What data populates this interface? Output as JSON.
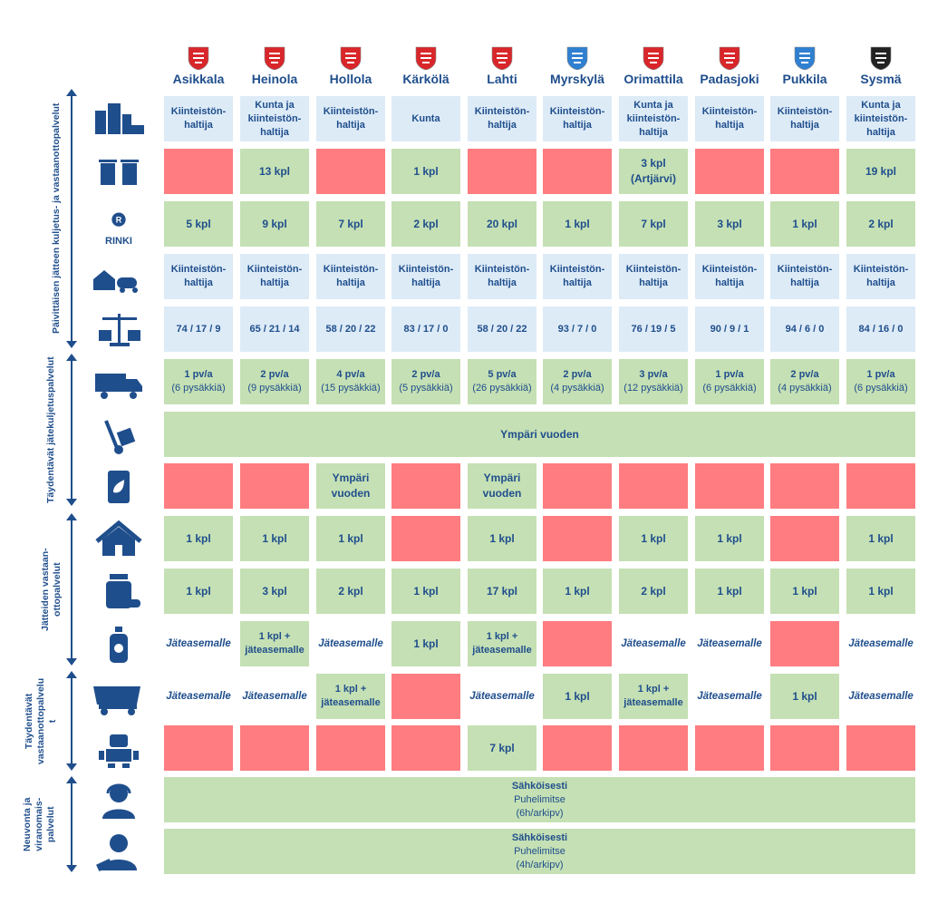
{
  "municipalities": [
    "Asikkala",
    "Heinola",
    "Hollola",
    "Kärkölä",
    "Lahti",
    "Myrskylä",
    "Orimattila",
    "Padasjoki",
    "Pukkila",
    "Sysmä"
  ],
  "crest_colors": [
    "#d9262a",
    "#d9262a",
    "#d9262a",
    "#d9262a",
    "#d9262a",
    "#2f80d1",
    "#d9262a",
    "#d9262a",
    "#2f80d1",
    "#222222"
  ],
  "groups": [
    {
      "label": "Päivittäisen jätteen kuljetus- ja vastaanottopalvelut"
    },
    {
      "label": "Täydentävät jätekuljetuspalvelut"
    },
    {
      "label": "Jätteiden vastaan-\nottopalvelut"
    },
    {
      "label": "Täydentävät\nvastaanottopalvelu\nt"
    },
    {
      "label": "Neuvonta ja\nviranomais-\npalvelut"
    }
  ],
  "icons": [
    "buildings-truck-icon",
    "waste-bins-icon",
    "rinki-logo-icon",
    "house-tanker-icon",
    "scales-icon",
    "truck-icon",
    "hand-truck-icon",
    "compost-bag-icon",
    "house-icon",
    "medicine-bottle-icon",
    "hazardous-spray-icon",
    "dump-truck-icon",
    "robot-icon",
    "headset-person-icon",
    "official-person-icon"
  ],
  "rinki_label": "RINKI",
  "rows": [
    {
      "cells": [
        {
          "t": "Kiinteistön-\nhaltija",
          "c": "blue"
        },
        {
          "t": "Kunta ja\nkiinteistön-\nhaltija",
          "c": "blue"
        },
        {
          "t": "Kiinteistön-\nhaltija",
          "c": "blue"
        },
        {
          "t": "Kunta",
          "c": "blue"
        },
        {
          "t": "Kiinteistön-\nhaltija",
          "c": "blue"
        },
        {
          "t": "Kiinteistön-\nhaltija",
          "c": "blue"
        },
        {
          "t": "Kunta ja\nkiinteistön-\nhaltija",
          "c": "blue"
        },
        {
          "t": "Kiinteistön-\nhaltija",
          "c": "blue"
        },
        {
          "t": "Kiinteistön-\nhaltija",
          "c": "blue"
        },
        {
          "t": "Kunta ja\nkiinteistön-\nhaltija",
          "c": "blue"
        }
      ]
    },
    {
      "cells": [
        {
          "t": "",
          "c": "red"
        },
        {
          "t": "13 kpl",
          "c": "green",
          "b": 1
        },
        {
          "t": "",
          "c": "red"
        },
        {
          "t": "1 kpl",
          "c": "green",
          "b": 1
        },
        {
          "t": "",
          "c": "red"
        },
        {
          "t": "",
          "c": "red"
        },
        {
          "t": "3 kpl\n(Artjärvi)",
          "c": "green",
          "b": 1
        },
        {
          "t": "",
          "c": "red"
        },
        {
          "t": "",
          "c": "red"
        },
        {
          "t": "19 kpl",
          "c": "green",
          "b": 1
        }
      ]
    },
    {
      "cells": [
        {
          "t": "5 kpl",
          "c": "green",
          "b": 1
        },
        {
          "t": "9 kpl",
          "c": "green",
          "b": 1
        },
        {
          "t": "7 kpl",
          "c": "green",
          "b": 1
        },
        {
          "t": "2 kpl",
          "c": "green",
          "b": 1
        },
        {
          "t": "20 kpl",
          "c": "green",
          "b": 1
        },
        {
          "t": "1 kpl",
          "c": "green",
          "b": 1
        },
        {
          "t": "7 kpl",
          "c": "green",
          "b": 1
        },
        {
          "t": "3 kpl",
          "c": "green",
          "b": 1
        },
        {
          "t": "1 kpl",
          "c": "green",
          "b": 1
        },
        {
          "t": "2 kpl",
          "c": "green",
          "b": 1
        }
      ]
    },
    {
      "cells": [
        {
          "t": "Kiinteistön-\nhaltija",
          "c": "blue"
        },
        {
          "t": "Kiinteistön-\nhaltija",
          "c": "blue"
        },
        {
          "t": "Kiinteistön-\nhaltija",
          "c": "blue"
        },
        {
          "t": "Kiinteistön-\nhaltija",
          "c": "blue"
        },
        {
          "t": "Kiinteistön-\nhaltija",
          "c": "blue"
        },
        {
          "t": "Kiinteistön-\nhaltija",
          "c": "blue"
        },
        {
          "t": "Kiinteistön-\nhaltija",
          "c": "blue"
        },
        {
          "t": "Kiinteistön-\nhaltija",
          "c": "blue"
        },
        {
          "t": "Kiinteistön-\nhaltija",
          "c": "blue"
        },
        {
          "t": "Kiinteistön-\nhaltija",
          "c": "blue"
        }
      ]
    },
    {
      "cells": [
        {
          "t": "74 / 17 / 9",
          "c": "blue"
        },
        {
          "t": "65 / 21 / 14",
          "c": "blue"
        },
        {
          "t": "58 / 20 / 22",
          "c": "blue"
        },
        {
          "t": "83 / 17 / 0",
          "c": "blue"
        },
        {
          "t": "58 / 20 / 22",
          "c": "blue"
        },
        {
          "t": "93 / 7 / 0",
          "c": "blue"
        },
        {
          "t": "76 / 19 / 5",
          "c": "blue"
        },
        {
          "t": "90 / 9 / 1",
          "c": "blue"
        },
        {
          "t": "94 / 6 / 0",
          "c": "blue"
        },
        {
          "t": "84 / 16 / 0",
          "c": "blue"
        }
      ]
    },
    {
      "cells": [
        {
          "t": "1 pv/a",
          "s": "(6 pysäkkiä)",
          "c": "green"
        },
        {
          "t": "2 pv/a",
          "s": "(9 pysäkkiä)",
          "c": "green"
        },
        {
          "t": "4 pv/a",
          "s": "(15 pysäkkiä)",
          "c": "green"
        },
        {
          "t": "2 pv/a",
          "s": "(5 pysäkkiä)",
          "c": "green"
        },
        {
          "t": "5 pv/a",
          "s": "(26 pysäkkiä)",
          "c": "green"
        },
        {
          "t": "2 pv/a",
          "s": "(4 pysäkkiä)",
          "c": "green"
        },
        {
          "t": "3 pv/a",
          "s": "(12 pysäkkiä)",
          "c": "green"
        },
        {
          "t": "1 pv/a",
          "s": "(6 pysäkkiä)",
          "c": "green"
        },
        {
          "t": "2 pv/a",
          "s": "(4 pysäkkiä)",
          "c": "green"
        },
        {
          "t": "1 pv/a",
          "s": "(6 pysäkkiä)",
          "c": "green"
        }
      ]
    },
    {
      "span": {
        "t": "Ympäri vuoden",
        "c": "green"
      }
    },
    {
      "cells": [
        {
          "t": "",
          "c": "red"
        },
        {
          "t": "",
          "c": "red"
        },
        {
          "t": "Ympäri\nvuoden",
          "c": "green",
          "b": 1
        },
        {
          "t": "",
          "c": "red"
        },
        {
          "t": "Ympäri\nvuoden",
          "c": "green",
          "b": 1
        },
        {
          "t": "",
          "c": "red"
        },
        {
          "t": "",
          "c": "red"
        },
        {
          "t": "",
          "c": "red"
        },
        {
          "t": "",
          "c": "red"
        },
        {
          "t": "",
          "c": "red"
        }
      ]
    },
    {
      "cells": [
        {
          "t": "1 kpl",
          "c": "green",
          "b": 1
        },
        {
          "t": "1 kpl",
          "c": "green",
          "b": 1
        },
        {
          "t": "1 kpl",
          "c": "green",
          "b": 1
        },
        {
          "t": "",
          "c": "red"
        },
        {
          "t": "1 kpl",
          "c": "green",
          "b": 1
        },
        {
          "t": "",
          "c": "red"
        },
        {
          "t": "1 kpl",
          "c": "green",
          "b": 1
        },
        {
          "t": "1 kpl",
          "c": "green",
          "b": 1
        },
        {
          "t": "",
          "c": "red"
        },
        {
          "t": "1 kpl",
          "c": "green",
          "b": 1
        }
      ]
    },
    {
      "cells": [
        {
          "t": "1 kpl",
          "c": "green",
          "b": 1
        },
        {
          "t": "3 kpl",
          "c": "green",
          "b": 1
        },
        {
          "t": "2 kpl",
          "c": "green",
          "b": 1
        },
        {
          "t": "1 kpl",
          "c": "green",
          "b": 1
        },
        {
          "t": "17 kpl",
          "c": "green",
          "b": 1
        },
        {
          "t": "1 kpl",
          "c": "green",
          "b": 1
        },
        {
          "t": "2 kpl",
          "c": "green",
          "b": 1
        },
        {
          "t": "1 kpl",
          "c": "green",
          "b": 1
        },
        {
          "t": "1 kpl",
          "c": "green",
          "b": 1
        },
        {
          "t": "1 kpl",
          "c": "green",
          "b": 1
        }
      ]
    },
    {
      "cells": [
        {
          "t": "Jäteasemalle",
          "c": "white",
          "i": 1
        },
        {
          "t": "1 kpl +\njäteasemalle",
          "c": "green"
        },
        {
          "t": "Jäteasemalle",
          "c": "white",
          "i": 1
        },
        {
          "t": "1 kpl",
          "c": "green",
          "b": 1
        },
        {
          "t": "1 kpl +\njäteasemalle",
          "c": "green"
        },
        {
          "t": "",
          "c": "red"
        },
        {
          "t": "Jäteasemalle",
          "c": "white",
          "i": 1
        },
        {
          "t": "Jäteasemalle",
          "c": "white",
          "i": 1
        },
        {
          "t": "",
          "c": "red"
        },
        {
          "t": "Jäteasemalle",
          "c": "white",
          "i": 1
        }
      ]
    },
    {
      "cells": [
        {
          "t": "Jäteasemalle",
          "c": "white",
          "i": 1
        },
        {
          "t": "Jäteasemalle",
          "c": "white",
          "i": 1
        },
        {
          "t": "1 kpl +\njäteasemalle",
          "c": "green"
        },
        {
          "t": "",
          "c": "red"
        },
        {
          "t": "Jäteasemalle",
          "c": "white",
          "i": 1
        },
        {
          "t": "1 kpl",
          "c": "green",
          "b": 1
        },
        {
          "t": "1 kpl +\njäteasemalle",
          "c": "green"
        },
        {
          "t": "Jäteasemalle",
          "c": "white",
          "i": 1
        },
        {
          "t": "1 kpl",
          "c": "green",
          "b": 1
        },
        {
          "t": "Jäteasemalle",
          "c": "white",
          "i": 1
        }
      ]
    },
    {
      "cells": [
        {
          "t": "",
          "c": "red"
        },
        {
          "t": "",
          "c": "red"
        },
        {
          "t": "",
          "c": "red"
        },
        {
          "t": "",
          "c": "red"
        },
        {
          "t": "7 kpl",
          "c": "green",
          "b": 1
        },
        {
          "t": "",
          "c": "red"
        },
        {
          "t": "",
          "c": "red"
        },
        {
          "t": "",
          "c": "red"
        },
        {
          "t": "",
          "c": "red"
        },
        {
          "t": "",
          "c": "red"
        }
      ]
    },
    {
      "span": {
        "t": "Sähköisesti",
        "s": "Puhelimitse\n(6h/arkipv)",
        "c": "green"
      }
    },
    {
      "span": {
        "t": "Sähköisesti",
        "s": "Puhelimitse\n(4h/arkipv)",
        "c": "green"
      }
    }
  ]
}
